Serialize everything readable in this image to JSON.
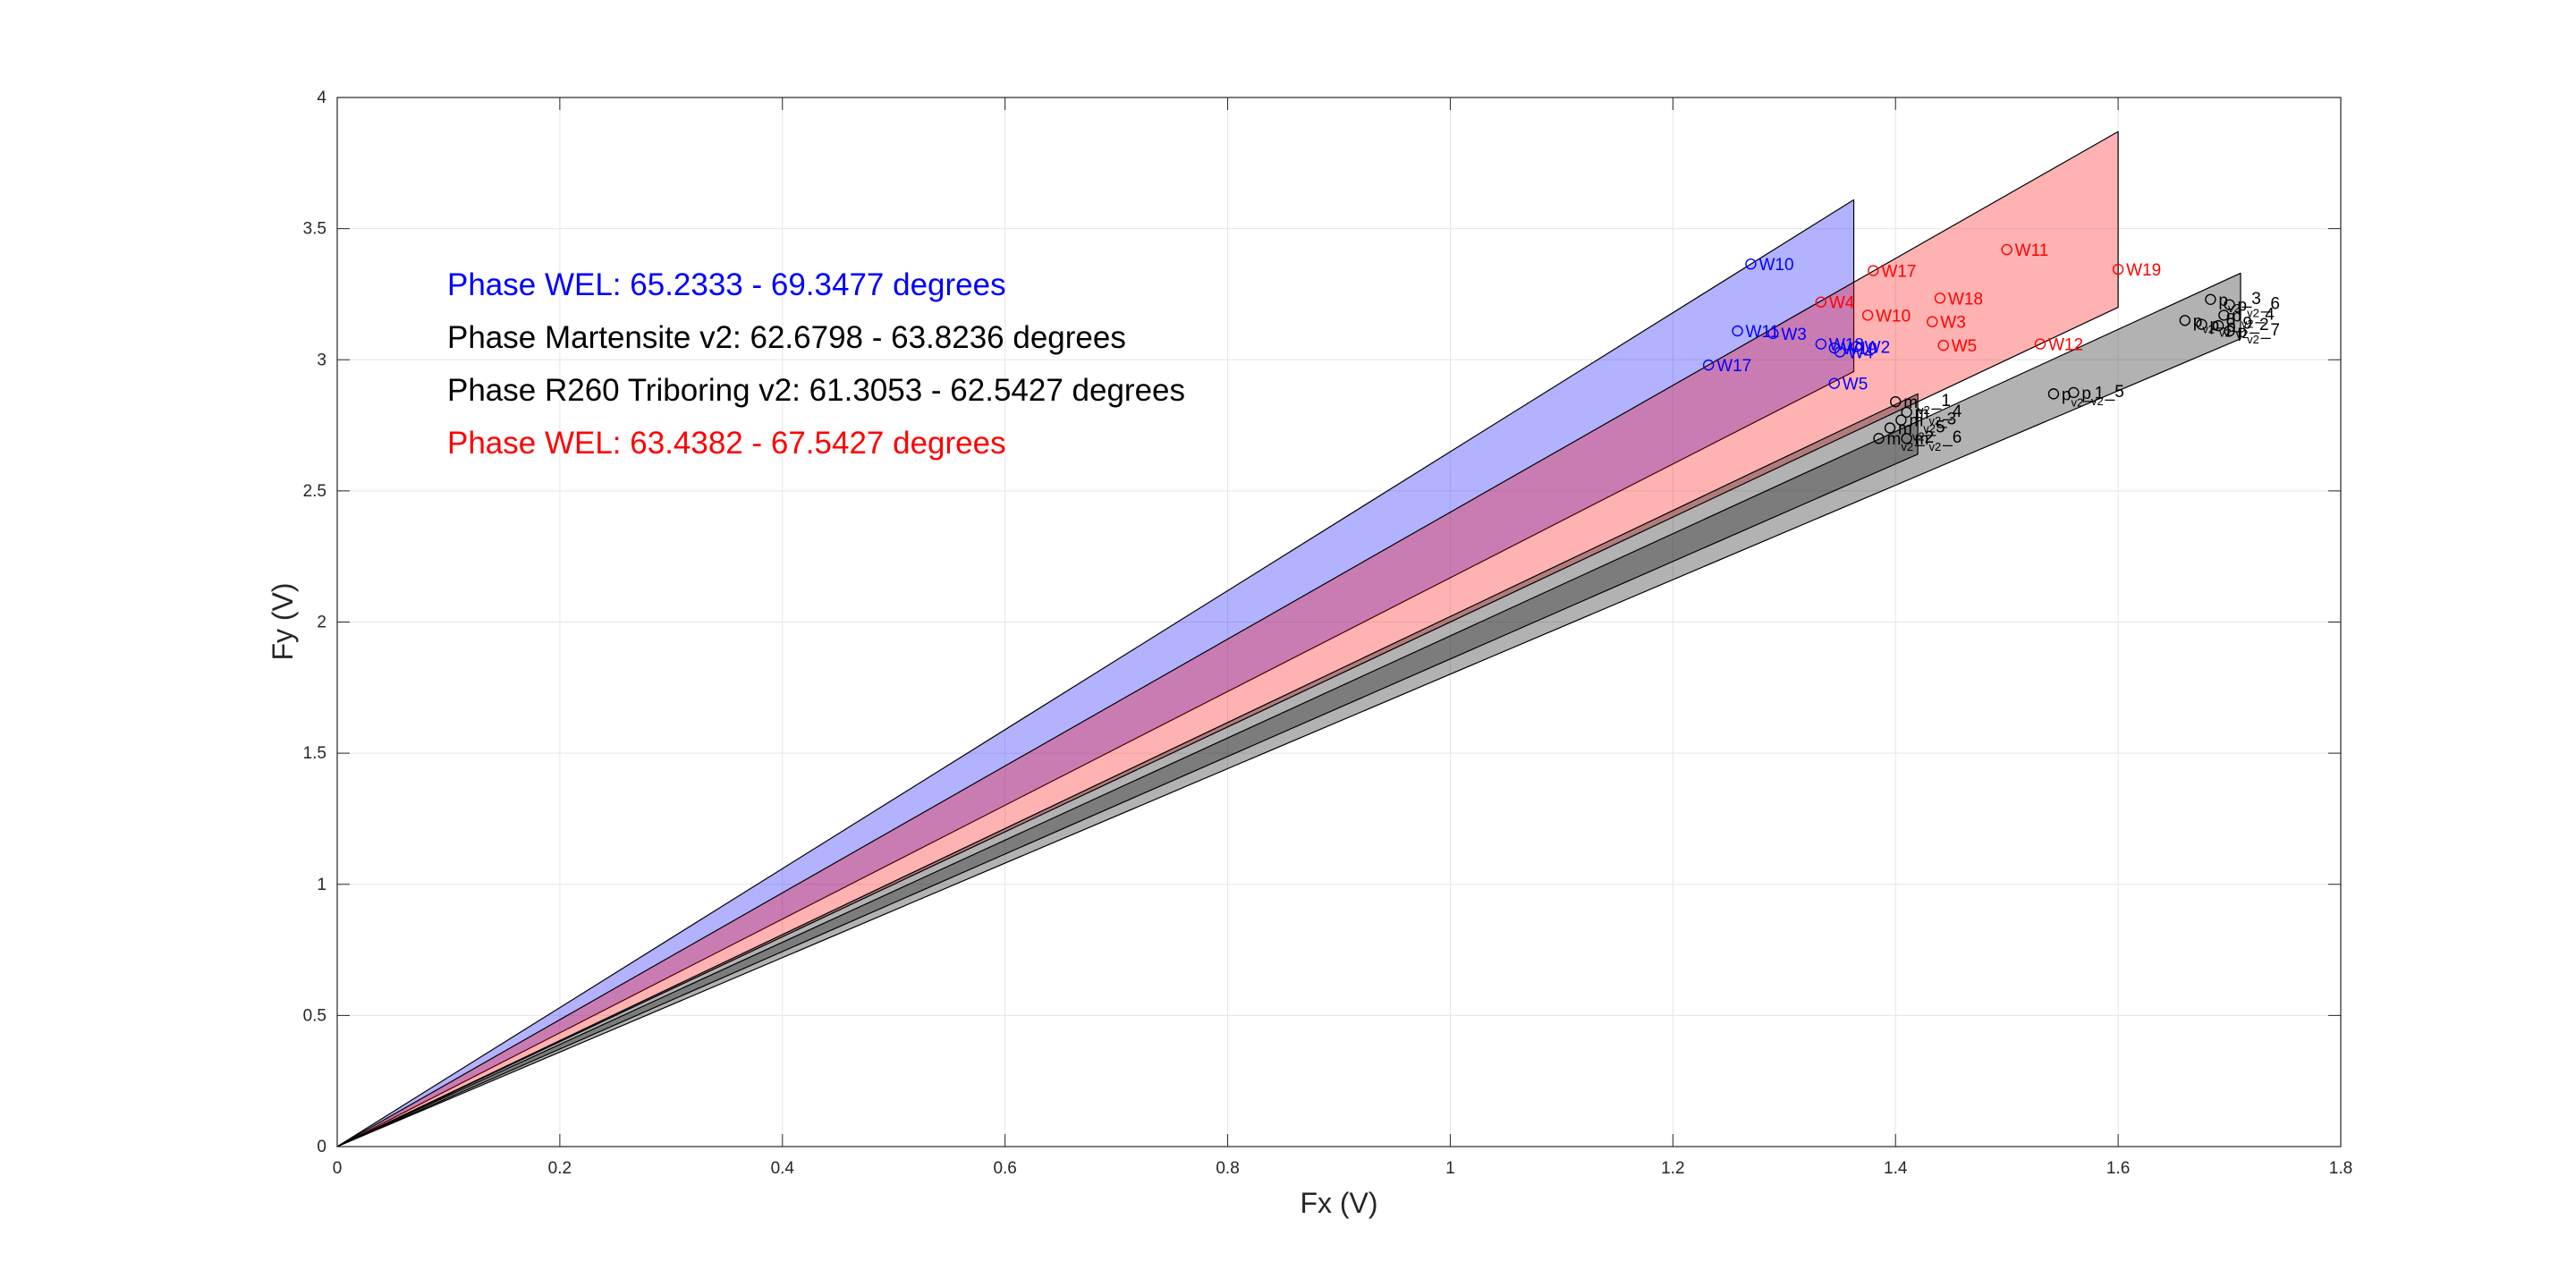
{
  "chart_data": {
    "type": "scatter",
    "xlabel": "Fx (V)",
    "ylabel": "Fy (V)",
    "xlim": [
      0,
      1.8
    ],
    "ylim": [
      0,
      4
    ],
    "xticks": [
      "0",
      "0.2",
      "0.4",
      "0.6",
      "0.8",
      "1",
      "1.2",
      "1.4",
      "1.6",
      "1.8"
    ],
    "yticks": [
      "0",
      "0.5",
      "1",
      "1.5",
      "2",
      "2.5",
      "3",
      "3.5",
      "4"
    ],
    "grid": true,
    "legend": [
      {
        "text": "Phase WEL: 65.2333 - 69.3477 degrees",
        "color": "#0000ff"
      },
      {
        "text": "Phase Martensite v2: 62.6798 - 63.8236 degrees",
        "color": "#000000"
      },
      {
        "text": "Phase R260 Triboring v2: 61.3053 - 62.5427 degrees",
        "color": "#000000"
      },
      {
        "text": "Phase WEL: 63.4382 - 67.5427 degrees",
        "color": "#ff0000"
      }
    ],
    "wedges": [
      {
        "color": "#0000ff",
        "fill": "#0000ff",
        "opacity": 0.3,
        "x_end": 1.3625,
        "y_upper": 3.61,
        "y_lower": 2.955
      },
      {
        "color": "#ff0000",
        "fill": "#ff0000",
        "opacity": 0.3,
        "x_end": 1.6,
        "y_upper": 3.87,
        "y_lower": 3.2
      },
      {
        "color": "#000000",
        "fill": "#000000",
        "opacity": 0.3,
        "x_end": 1.71,
        "y_upper": 3.33,
        "y_lower": 3.08
      },
      {
        "color": "#000000",
        "fill": "#000000",
        "opacity": 0.3,
        "x_end": 1.42,
        "y_upper": 2.87,
        "y_lower": 2.64
      }
    ],
    "series": [
      {
        "color": "#0000ff",
        "points": [
          {
            "x": 1.27,
            "y": 3.365,
            "label": "W10"
          },
          {
            "x": 1.258,
            "y": 3.11,
            "label": "W11"
          },
          {
            "x": 1.29,
            "y": 3.1,
            "label": "W3"
          },
          {
            "x": 1.333,
            "y": 3.06,
            "label": "W18"
          },
          {
            "x": 1.345,
            "y": 3.045,
            "label": "W19"
          },
          {
            "x": 1.35,
            "y": 3.03,
            "label": "W4"
          },
          {
            "x": 1.365,
            "y": 3.05,
            "label": "W2"
          },
          {
            "x": 1.232,
            "y": 2.98,
            "label": "W17"
          },
          {
            "x": 1.345,
            "y": 2.91,
            "label": "W5"
          }
        ]
      },
      {
        "color": "#ff0000",
        "points": [
          {
            "x": 1.5,
            "y": 3.42,
            "label": "W11"
          },
          {
            "x": 1.38,
            "y": 3.34,
            "label": "W17"
          },
          {
            "x": 1.6,
            "y": 3.345,
            "label": "W19"
          },
          {
            "x": 1.333,
            "y": 3.22,
            "label": "W4"
          },
          {
            "x": 1.44,
            "y": 3.235,
            "label": "W18"
          },
          {
            "x": 1.375,
            "y": 3.17,
            "label": "W10"
          },
          {
            "x": 1.433,
            "y": 3.145,
            "label": "W3"
          },
          {
            "x": 1.443,
            "y": 3.055,
            "label": "W5"
          },
          {
            "x": 1.53,
            "y": 3.06,
            "label": "W12"
          }
        ]
      },
      {
        "color": "#000000",
        "points": [
          {
            "x": 1.683,
            "y": 3.23,
            "label": "p",
            "sub": "v2",
            "tag": "3"
          },
          {
            "x": 1.7,
            "y": 3.21,
            "label": "p",
            "sub": "v2",
            "tag": "6"
          },
          {
            "x": 1.695,
            "y": 3.17,
            "label": "p",
            "sub": "v2",
            "tag": "4"
          },
          {
            "x": 1.69,
            "y": 3.13,
            "label": "p",
            "sub": "v2",
            "tag": "2"
          },
          {
            "x": 1.66,
            "y": 3.15,
            "label": "p",
            "sub": "v2",
            "tag": "8"
          },
          {
            "x": 1.675,
            "y": 3.135,
            "label": "p",
            "sub": "v2",
            "tag": "9"
          },
          {
            "x": 1.7,
            "y": 3.11,
            "label": "p",
            "sub": "v2",
            "tag": "7"
          },
          {
            "x": 1.542,
            "y": 2.87,
            "label": "p",
            "sub": "v2",
            "tag": "1"
          },
          {
            "x": 1.56,
            "y": 2.875,
            "label": "p",
            "sub": "v2",
            "tag": "5"
          },
          {
            "x": 1.4,
            "y": 2.84,
            "label": "m",
            "sub": "v2",
            "tag": "1"
          },
          {
            "x": 1.41,
            "y": 2.8,
            "label": "m",
            "sub": "v2",
            "tag": "4"
          },
          {
            "x": 1.405,
            "y": 2.77,
            "label": "m",
            "sub": "v2",
            "tag": "3"
          },
          {
            "x": 1.395,
            "y": 2.74,
            "label": "m",
            "sub": "v2",
            "tag": "5"
          },
          {
            "x": 1.385,
            "y": 2.7,
            "label": "m",
            "sub": "v2",
            "tag": "2"
          },
          {
            "x": 1.41,
            "y": 2.7,
            "label": "m",
            "sub": "v2",
            "tag": "6"
          }
        ]
      }
    ]
  }
}
